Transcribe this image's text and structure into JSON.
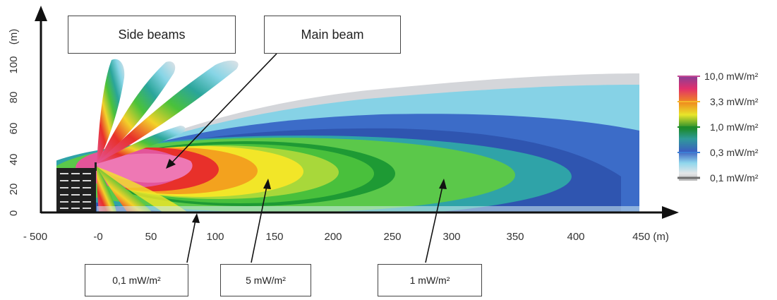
{
  "colors": {
    "pink": "#e3559a",
    "red": "#e8302a",
    "orange": "#f3a21e",
    "yellow": "#f2e628",
    "green": "#4ac23a",
    "darkgreen": "#1b8a2c",
    "teal": "#2aa59a",
    "blue": "#3266c4",
    "navy": "#2a4ba8",
    "cyan": "#87d5e6",
    "grey": "#c9ccd0"
  },
  "axes": {
    "y_label": "(m)",
    "y_ticks": [
      "0",
      "20",
      "40",
      "60",
      "80",
      "100"
    ],
    "x_ticks": [
      "- 500",
      "-0",
      "50",
      "100",
      "150",
      "200",
      "250",
      "300",
      "350",
      "400",
      "450 (m)"
    ]
  },
  "callouts": {
    "side_beams": "Side beams",
    "main_beam": "Main beam",
    "level_low": "0,1 mW/m²",
    "level_high": "5 mW/m²",
    "level_mid": "1 mW/m²"
  },
  "legend": [
    {
      "label": "10,0 mW/m²",
      "color": "#c44b96"
    },
    {
      "label": "3,3 mW/m²",
      "color": "#f5b52a"
    },
    {
      "label": "1,0 mW/m²",
      "color": "#1b8a2c"
    },
    {
      "label": "0,3 mW/m²",
      "color": "#3d7fd4"
    },
    {
      "label": "0,1 mW/m²",
      "color": "#6e6e6e"
    }
  ]
}
